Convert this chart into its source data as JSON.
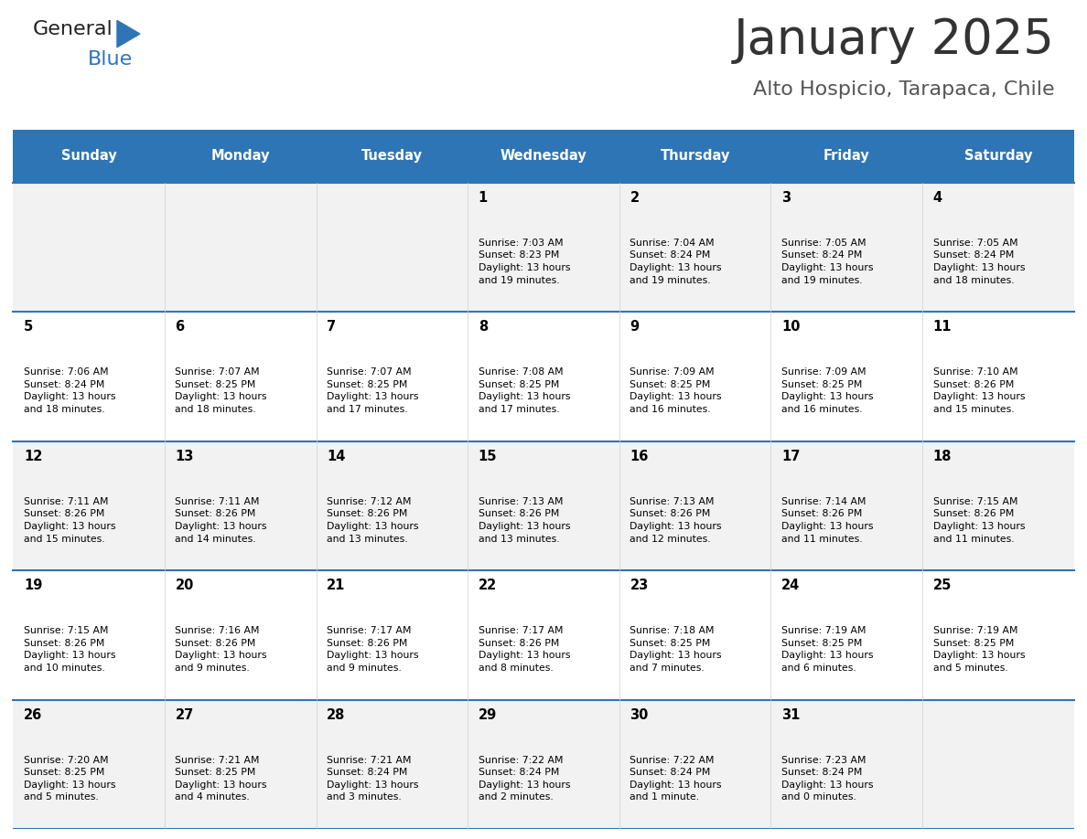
{
  "title": "January 2025",
  "subtitle": "Alto Hospicio, Tarapaca, Chile",
  "days_of_week": [
    "Sunday",
    "Monday",
    "Tuesday",
    "Wednesday",
    "Thursday",
    "Friday",
    "Saturday"
  ],
  "header_bg": "#2E75B6",
  "header_text": "#FFFFFF",
  "row_bg_odd": "#F2F2F2",
  "row_bg_even": "#FFFFFF",
  "cell_text": "#000000",
  "title_color": "#333333",
  "subtitle_color": "#555555",
  "divider_color": "#2E75B6",
  "logo_general_color": "#222222",
  "logo_blue_color": "#2E75B6",
  "logo_triangle_color": "#2E75B6",
  "calendar_data": [
    [
      {
        "day": null,
        "info": null
      },
      {
        "day": null,
        "info": null
      },
      {
        "day": null,
        "info": null
      },
      {
        "day": 1,
        "info": "Sunrise: 7:03 AM\nSunset: 8:23 PM\nDaylight: 13 hours\nand 19 minutes."
      },
      {
        "day": 2,
        "info": "Sunrise: 7:04 AM\nSunset: 8:24 PM\nDaylight: 13 hours\nand 19 minutes."
      },
      {
        "day": 3,
        "info": "Sunrise: 7:05 AM\nSunset: 8:24 PM\nDaylight: 13 hours\nand 19 minutes."
      },
      {
        "day": 4,
        "info": "Sunrise: 7:05 AM\nSunset: 8:24 PM\nDaylight: 13 hours\nand 18 minutes."
      }
    ],
    [
      {
        "day": 5,
        "info": "Sunrise: 7:06 AM\nSunset: 8:24 PM\nDaylight: 13 hours\nand 18 minutes."
      },
      {
        "day": 6,
        "info": "Sunrise: 7:07 AM\nSunset: 8:25 PM\nDaylight: 13 hours\nand 18 minutes."
      },
      {
        "day": 7,
        "info": "Sunrise: 7:07 AM\nSunset: 8:25 PM\nDaylight: 13 hours\nand 17 minutes."
      },
      {
        "day": 8,
        "info": "Sunrise: 7:08 AM\nSunset: 8:25 PM\nDaylight: 13 hours\nand 17 minutes."
      },
      {
        "day": 9,
        "info": "Sunrise: 7:09 AM\nSunset: 8:25 PM\nDaylight: 13 hours\nand 16 minutes."
      },
      {
        "day": 10,
        "info": "Sunrise: 7:09 AM\nSunset: 8:25 PM\nDaylight: 13 hours\nand 16 minutes."
      },
      {
        "day": 11,
        "info": "Sunrise: 7:10 AM\nSunset: 8:26 PM\nDaylight: 13 hours\nand 15 minutes."
      }
    ],
    [
      {
        "day": 12,
        "info": "Sunrise: 7:11 AM\nSunset: 8:26 PM\nDaylight: 13 hours\nand 15 minutes."
      },
      {
        "day": 13,
        "info": "Sunrise: 7:11 AM\nSunset: 8:26 PM\nDaylight: 13 hours\nand 14 minutes."
      },
      {
        "day": 14,
        "info": "Sunrise: 7:12 AM\nSunset: 8:26 PM\nDaylight: 13 hours\nand 13 minutes."
      },
      {
        "day": 15,
        "info": "Sunrise: 7:13 AM\nSunset: 8:26 PM\nDaylight: 13 hours\nand 13 minutes."
      },
      {
        "day": 16,
        "info": "Sunrise: 7:13 AM\nSunset: 8:26 PM\nDaylight: 13 hours\nand 12 minutes."
      },
      {
        "day": 17,
        "info": "Sunrise: 7:14 AM\nSunset: 8:26 PM\nDaylight: 13 hours\nand 11 minutes."
      },
      {
        "day": 18,
        "info": "Sunrise: 7:15 AM\nSunset: 8:26 PM\nDaylight: 13 hours\nand 11 minutes."
      }
    ],
    [
      {
        "day": 19,
        "info": "Sunrise: 7:15 AM\nSunset: 8:26 PM\nDaylight: 13 hours\nand 10 minutes."
      },
      {
        "day": 20,
        "info": "Sunrise: 7:16 AM\nSunset: 8:26 PM\nDaylight: 13 hours\nand 9 minutes."
      },
      {
        "day": 21,
        "info": "Sunrise: 7:17 AM\nSunset: 8:26 PM\nDaylight: 13 hours\nand 9 minutes."
      },
      {
        "day": 22,
        "info": "Sunrise: 7:17 AM\nSunset: 8:26 PM\nDaylight: 13 hours\nand 8 minutes."
      },
      {
        "day": 23,
        "info": "Sunrise: 7:18 AM\nSunset: 8:25 PM\nDaylight: 13 hours\nand 7 minutes."
      },
      {
        "day": 24,
        "info": "Sunrise: 7:19 AM\nSunset: 8:25 PM\nDaylight: 13 hours\nand 6 minutes."
      },
      {
        "day": 25,
        "info": "Sunrise: 7:19 AM\nSunset: 8:25 PM\nDaylight: 13 hours\nand 5 minutes."
      }
    ],
    [
      {
        "day": 26,
        "info": "Sunrise: 7:20 AM\nSunset: 8:25 PM\nDaylight: 13 hours\nand 5 minutes."
      },
      {
        "day": 27,
        "info": "Sunrise: 7:21 AM\nSunset: 8:25 PM\nDaylight: 13 hours\nand 4 minutes."
      },
      {
        "day": 28,
        "info": "Sunrise: 7:21 AM\nSunset: 8:24 PM\nDaylight: 13 hours\nand 3 minutes."
      },
      {
        "day": 29,
        "info": "Sunrise: 7:22 AM\nSunset: 8:24 PM\nDaylight: 13 hours\nand 2 minutes."
      },
      {
        "day": 30,
        "info": "Sunrise: 7:22 AM\nSunset: 8:24 PM\nDaylight: 13 hours\nand 1 minute."
      },
      {
        "day": 31,
        "info": "Sunrise: 7:23 AM\nSunset: 8:24 PM\nDaylight: 13 hours\nand 0 minutes."
      },
      {
        "day": null,
        "info": null
      }
    ]
  ]
}
